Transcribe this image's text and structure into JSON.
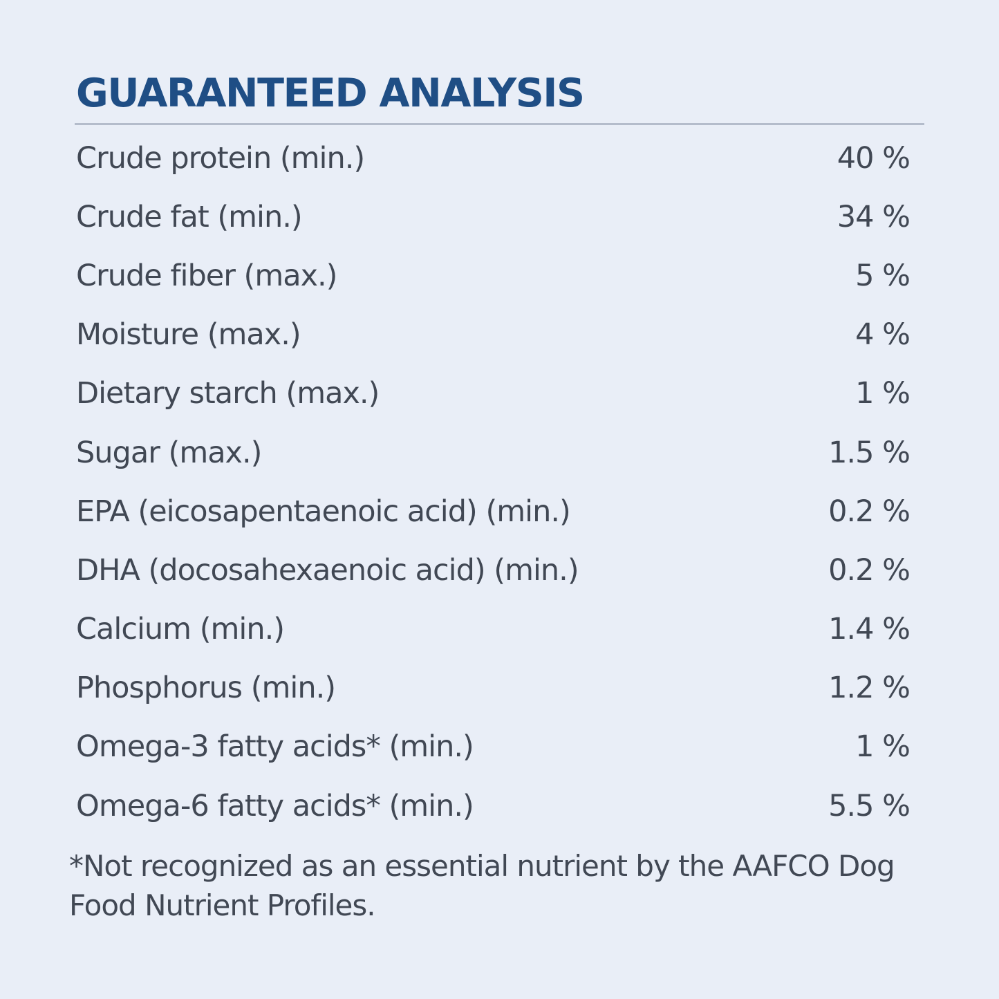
{
  "header": {
    "title": "GUARANTEED ANALYSIS"
  },
  "analysis": {
    "rows": [
      {
        "label": "Crude protein (min.)",
        "value": "40 %"
      },
      {
        "label": "Crude fat (min.)",
        "value": "34 %"
      },
      {
        "label": "Crude fiber (max.)",
        "value": "5 %"
      },
      {
        "label": "Moisture (max.)",
        "value": "4 %"
      },
      {
        "label": "Dietary starch (max.)",
        "value": "1 %"
      },
      {
        "label": "Sugar (max.)",
        "value": "1.5 %"
      },
      {
        "label": "EPA (eicosapentaenoic acid) (min.)",
        "value": "0.2 %"
      },
      {
        "label": "DHA (docosahexaenoic acid) (min.)",
        "value": "0.2 %"
      },
      {
        "label": "Calcium (min.)",
        "value": "1.4 %"
      },
      {
        "label": "Phosphorus (min.)",
        "value": "1.2 %"
      },
      {
        "label": "Omega-3 fatty acids* (min.)",
        "value": "1 %"
      },
      {
        "label": "Omega-6 fatty acids* (min.)",
        "value": "5.5 %"
      }
    ]
  },
  "footnote": {
    "text": "*Not recognized as an essential nutrient by the AAFCO Dog Food Nutrient Profiles."
  },
  "colors": {
    "background": "#e9eef7",
    "title": "#1f4e85",
    "text": "#414854",
    "rule": "#b4bccb"
  }
}
